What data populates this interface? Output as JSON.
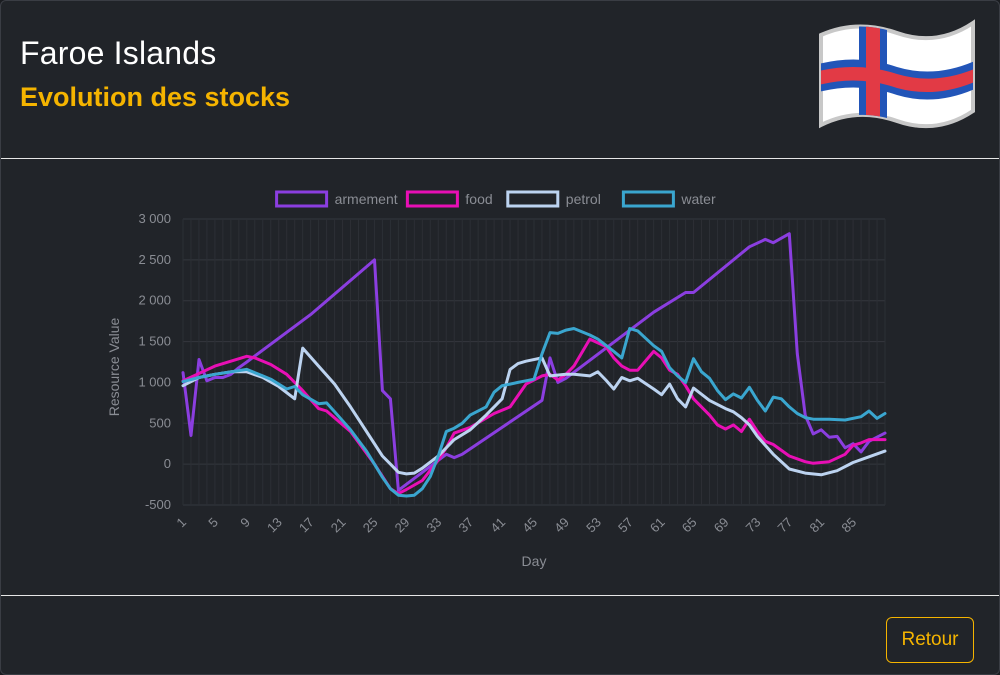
{
  "header": {
    "title": "Faroe Islands",
    "subtitle": "Evolution des stocks",
    "flag_icon": "faroe-islands-flag-icon"
  },
  "footer": {
    "back_label": "Retour"
  },
  "colors": {
    "accent": "#f5b400",
    "armement": "#8b3ee0",
    "food": "#e80fb5",
    "petrol": "#bcd3f0",
    "water": "#3aa6cf"
  },
  "chart_data": {
    "type": "line",
    "xlabel": "Day",
    "ylabel": "Resource Value",
    "ylim": [
      -500,
      3000
    ],
    "xlim": [
      1,
      89
    ],
    "yticks": [
      "3 000",
      "2 500",
      "2 000",
      "1 500",
      "1 000",
      "500",
      "0",
      "-500"
    ],
    "xticks": [
      "1",
      "5",
      "9",
      "13",
      "17",
      "21",
      "25",
      "29",
      "33",
      "37",
      "41",
      "45",
      "49",
      "53",
      "57",
      "61",
      "65",
      "69",
      "73",
      "77",
      "81",
      "85"
    ],
    "grid": true,
    "legend_position": "top",
    "series": [
      {
        "name": "armement",
        "color": "#8b3ee0",
        "points": [
          [
            1,
            1120
          ],
          [
            2,
            350
          ],
          [
            3,
            1280
          ],
          [
            4,
            1020
          ],
          [
            5,
            1060
          ],
          [
            6,
            1060
          ],
          [
            7,
            1100
          ],
          [
            8,
            1180
          ],
          [
            9,
            1250
          ],
          [
            17,
            1830
          ],
          [
            25,
            2500
          ],
          [
            26,
            900
          ],
          [
            27,
            800
          ],
          [
            28,
            -320
          ],
          [
            34,
            120
          ],
          [
            35,
            80
          ],
          [
            36,
            120
          ],
          [
            46,
            780
          ],
          [
            47,
            1300
          ],
          [
            48,
            1000
          ],
          [
            49,
            1050
          ],
          [
            60,
            1860
          ],
          [
            64,
            2100
          ],
          [
            65,
            2100
          ],
          [
            72,
            2660
          ],
          [
            74,
            2750
          ],
          [
            75,
            2710
          ],
          [
            77,
            2820
          ],
          [
            78,
            1350
          ],
          [
            79,
            600
          ],
          [
            80,
            370
          ],
          [
            81,
            420
          ],
          [
            82,
            330
          ],
          [
            83,
            340
          ],
          [
            84,
            200
          ],
          [
            85,
            250
          ],
          [
            86,
            150
          ],
          [
            87,
            280
          ],
          [
            89,
            380
          ]
        ]
      },
      {
        "name": "food",
        "color": "#e80fb5",
        "points": [
          [
            1,
            1020
          ],
          [
            5,
            1200
          ],
          [
            9,
            1320
          ],
          [
            10,
            1300
          ],
          [
            12,
            1220
          ],
          [
            14,
            1100
          ],
          [
            16,
            900
          ],
          [
            18,
            680
          ],
          [
            19,
            650
          ],
          [
            22,
            400
          ],
          [
            25,
            0
          ],
          [
            27,
            -300
          ],
          [
            28,
            -360
          ],
          [
            29,
            -310
          ],
          [
            31,
            -200
          ],
          [
            33,
            50
          ],
          [
            34,
            200
          ],
          [
            35,
            380
          ],
          [
            37,
            450
          ],
          [
            40,
            620
          ],
          [
            42,
            700
          ],
          [
            44,
            980
          ],
          [
            46,
            1080
          ],
          [
            47,
            1100
          ],
          [
            48,
            1030
          ],
          [
            49,
            1100
          ],
          [
            50,
            1200
          ],
          [
            52,
            1530
          ],
          [
            54,
            1440
          ],
          [
            55,
            1300
          ],
          [
            56,
            1200
          ],
          [
            57,
            1150
          ],
          [
            58,
            1150
          ],
          [
            60,
            1380
          ],
          [
            61,
            1300
          ],
          [
            62,
            1150
          ],
          [
            63,
            1100
          ],
          [
            64,
            960
          ],
          [
            65,
            800
          ],
          [
            67,
            600
          ],
          [
            68,
            480
          ],
          [
            69,
            430
          ],
          [
            70,
            480
          ],
          [
            71,
            400
          ],
          [
            72,
            550
          ],
          [
            73,
            400
          ],
          [
            74,
            280
          ],
          [
            75,
            240
          ],
          [
            77,
            100
          ],
          [
            79,
            30
          ],
          [
            80,
            10
          ],
          [
            82,
            30
          ],
          [
            84,
            120
          ],
          [
            85,
            230
          ],
          [
            86,
            260
          ],
          [
            87,
            300
          ],
          [
            89,
            300
          ]
        ]
      },
      {
        "name": "petrol",
        "color": "#bcd3f0",
        "points": [
          [
            1,
            960
          ],
          [
            3,
            1060
          ],
          [
            5,
            1100
          ],
          [
            7,
            1130
          ],
          [
            9,
            1130
          ],
          [
            11,
            1060
          ],
          [
            13,
            950
          ],
          [
            15,
            800
          ],
          [
            16,
            1420
          ],
          [
            18,
            1200
          ],
          [
            20,
            980
          ],
          [
            22,
            700
          ],
          [
            24,
            400
          ],
          [
            26,
            100
          ],
          [
            27,
            0
          ],
          [
            28,
            -100
          ],
          [
            29,
            -120
          ],
          [
            30,
            -110
          ],
          [
            31,
            -50
          ],
          [
            33,
            100
          ],
          [
            35,
            300
          ],
          [
            37,
            420
          ],
          [
            39,
            600
          ],
          [
            41,
            800
          ],
          [
            42,
            1160
          ],
          [
            43,
            1230
          ],
          [
            44,
            1260
          ],
          [
            46,
            1300
          ],
          [
            47,
            1080
          ],
          [
            49,
            1100
          ],
          [
            50,
            1100
          ],
          [
            52,
            1080
          ],
          [
            53,
            1130
          ],
          [
            54,
            1030
          ],
          [
            55,
            920
          ],
          [
            56,
            1060
          ],
          [
            57,
            1020
          ],
          [
            58,
            1050
          ],
          [
            60,
            920
          ],
          [
            61,
            850
          ],
          [
            62,
            980
          ],
          [
            63,
            800
          ],
          [
            64,
            700
          ],
          [
            65,
            930
          ],
          [
            67,
            780
          ],
          [
            69,
            680
          ],
          [
            70,
            640
          ],
          [
            71,
            570
          ],
          [
            72,
            480
          ],
          [
            73,
            340
          ],
          [
            75,
            120
          ],
          [
            77,
            -60
          ],
          [
            79,
            -110
          ],
          [
            81,
            -130
          ],
          [
            83,
            -80
          ],
          [
            85,
            20
          ],
          [
            87,
            90
          ],
          [
            89,
            160
          ]
        ]
      },
      {
        "name": "water",
        "color": "#3aa6cf",
        "points": [
          [
            1,
            1010
          ],
          [
            3,
            1060
          ],
          [
            5,
            1100
          ],
          [
            7,
            1130
          ],
          [
            9,
            1160
          ],
          [
            11,
            1080
          ],
          [
            12,
            1040
          ],
          [
            14,
            920
          ],
          [
            15,
            950
          ],
          [
            16,
            850
          ],
          [
            18,
            740
          ],
          [
            19,
            750
          ],
          [
            20,
            640
          ],
          [
            22,
            420
          ],
          [
            24,
            160
          ],
          [
            26,
            -160
          ],
          [
            27,
            -300
          ],
          [
            28,
            -380
          ],
          [
            29,
            -390
          ],
          [
            30,
            -380
          ],
          [
            31,
            -300
          ],
          [
            32,
            -150
          ],
          [
            33,
            100
          ],
          [
            34,
            400
          ],
          [
            35,
            440
          ],
          [
            36,
            500
          ],
          [
            37,
            600
          ],
          [
            39,
            700
          ],
          [
            40,
            880
          ],
          [
            41,
            960
          ],
          [
            42,
            980
          ],
          [
            43,
            1000
          ],
          [
            44,
            1020
          ],
          [
            45,
            1040
          ],
          [
            46,
            1350
          ],
          [
            47,
            1610
          ],
          [
            48,
            1600
          ],
          [
            49,
            1640
          ],
          [
            50,
            1660
          ],
          [
            52,
            1580
          ],
          [
            53,
            1530
          ],
          [
            55,
            1380
          ],
          [
            56,
            1300
          ],
          [
            57,
            1660
          ],
          [
            58,
            1630
          ],
          [
            59,
            1540
          ],
          [
            60,
            1450
          ],
          [
            61,
            1380
          ],
          [
            62,
            1180
          ],
          [
            63,
            1080
          ],
          [
            64,
            1000
          ],
          [
            65,
            1290
          ],
          [
            66,
            1130
          ],
          [
            67,
            1050
          ],
          [
            68,
            900
          ],
          [
            69,
            790
          ],
          [
            70,
            860
          ],
          [
            71,
            810
          ],
          [
            72,
            940
          ],
          [
            73,
            780
          ],
          [
            74,
            650
          ],
          [
            75,
            820
          ],
          [
            76,
            800
          ],
          [
            77,
            700
          ],
          [
            78,
            620
          ],
          [
            79,
            570
          ],
          [
            80,
            550
          ],
          [
            82,
            550
          ],
          [
            84,
            540
          ],
          [
            86,
            580
          ],
          [
            87,
            650
          ],
          [
            88,
            560
          ],
          [
            89,
            620
          ]
        ]
      }
    ]
  }
}
